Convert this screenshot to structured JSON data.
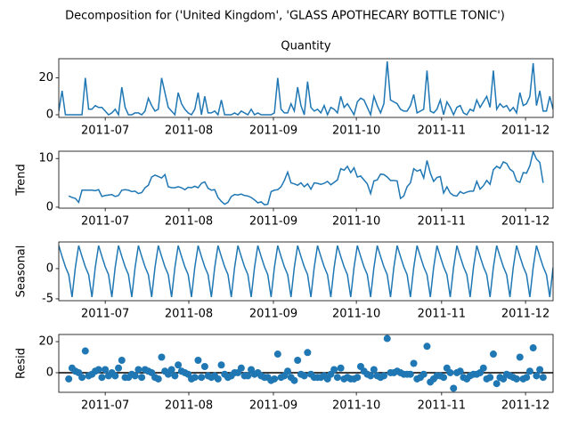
{
  "title": "Decomposition for ('United Kingdom', 'GLASS APOTHECARY BOTTLE TONIC')",
  "chart_data": [
    {
      "type": "line",
      "title": "Quantity",
      "color": "#1f77b4",
      "categories": [
        null,
        null,
        null,
        null,
        null,
        null,
        null,
        null,
        null,
        null,
        null,
        null,
        null,
        null,
        null,
        null,
        null,
        null,
        null,
        null,
        null,
        null,
        null,
        null,
        null,
        null,
        null,
        null,
        null,
        null,
        null,
        null,
        null,
        null,
        null,
        null,
        null,
        null,
        null,
        null,
        null,
        null,
        null,
        null,
        null,
        null,
        null,
        null,
        null,
        null,
        null,
        null,
        null,
        null,
        null,
        null,
        null,
        null,
        null,
        null,
        null,
        null,
        null,
        null,
        null,
        null,
        null,
        null,
        null,
        null,
        null,
        null,
        null,
        null,
        null,
        null,
        null,
        null,
        null,
        null,
        null,
        null,
        null,
        null,
        null,
        null,
        null,
        null,
        null,
        null,
        null,
        null,
        null,
        null,
        null,
        null,
        null,
        null,
        null,
        null,
        null,
        null,
        null,
        null,
        null,
        null,
        null,
        null,
        null,
        null,
        null,
        null,
        null,
        null,
        null,
        null,
        null,
        null,
        null,
        null,
        null,
        null,
        null,
        null,
        null,
        null,
        null,
        null,
        null,
        null,
        null,
        null,
        null,
        null,
        null,
        null,
        null,
        null,
        null,
        null,
        null,
        null,
        null,
        null,
        null,
        null,
        null,
        null,
        null,
        null
      ],
      "values": [
        2,
        13,
        0,
        0,
        0,
        0,
        0,
        0,
        20,
        3,
        3,
        5,
        4,
        4,
        2,
        0,
        1,
        3,
        0,
        15,
        4,
        0,
        0,
        1,
        1,
        0,
        2,
        9,
        5,
        2,
        3,
        20,
        12,
        4,
        2,
        0,
        12,
        6,
        3,
        1,
        0,
        3,
        12,
        0,
        10,
        1,
        1,
        2,
        0,
        8,
        0,
        0,
        0,
        1,
        0,
        2,
        1,
        0,
        3,
        0,
        1,
        0,
        0,
        0,
        0,
        1,
        20,
        3,
        1,
        1,
        6,
        2,
        15,
        5,
        0,
        18,
        4,
        2,
        3,
        1,
        5,
        0,
        4,
        3,
        1,
        10,
        4,
        6,
        3,
        0,
        7,
        9,
        8,
        4,
        0,
        10,
        5,
        1,
        6,
        29,
        8,
        7,
        6,
        3,
        2,
        2,
        5,
        11,
        1,
        2,
        3,
        24,
        2,
        1,
        3,
        8,
        0,
        7,
        4,
        0,
        4,
        5,
        1,
        0,
        3,
        2,
        8,
        4,
        7,
        10,
        4,
        24,
        3,
        6,
        4,
        5,
        2,
        4,
        1,
        12,
        5,
        6,
        10,
        28,
        5,
        13,
        2,
        2,
        10,
        3
      ],
      "xlim": [
        0,
        149
      ],
      "xticks": [
        {
          "value": 14.0,
          "label": "2011-07"
        },
        {
          "value": 39.2,
          "label": "2011-08"
        },
        {
          "value": 64.7,
          "label": "2011-09"
        },
        {
          "value": 89.7,
          "label": "2011-10"
        },
        {
          "value": 115.4,
          "label": "2011-11"
        },
        {
          "value": 140.7,
          "label": "2011-12"
        }
      ],
      "ylim": [
        -1.45,
        30.45
      ],
      "yticks": [
        0,
        20
      ]
    },
    {
      "type": "line",
      "ylabel": "Trend",
      "color": "#1f77b4",
      "categories": [
        null,
        null,
        null,
        null,
        null,
        null,
        null,
        null,
        null,
        null,
        null,
        null,
        null,
        null,
        null,
        null,
        null,
        null,
        null,
        null,
        null,
        null,
        null,
        null,
        null,
        null,
        null,
        null,
        null,
        null,
        null,
        null,
        null,
        null,
        null,
        null,
        null,
        null,
        null,
        null,
        null,
        null,
        null,
        null,
        null,
        null,
        null,
        null,
        null,
        null,
        null,
        null,
        null,
        null,
        null,
        null,
        null,
        null,
        null,
        null,
        null,
        null,
        null,
        null,
        null,
        null,
        null,
        null,
        null,
        null,
        null,
        null,
        null,
        null,
        null,
        null,
        null,
        null,
        null,
        null,
        null,
        null,
        null,
        null,
        null,
        null,
        null,
        null,
        null,
        null,
        null,
        null,
        null,
        null,
        null,
        null,
        null,
        null,
        null,
        null,
        null,
        null,
        null,
        null,
        null,
        null,
        null,
        null,
        null,
        null,
        null,
        null,
        null,
        null,
        null,
        null,
        null,
        null,
        null,
        null,
        null,
        null,
        null,
        null,
        null,
        null,
        null,
        null,
        null,
        null,
        null,
        null,
        null,
        null,
        null,
        null,
        null,
        null,
        null,
        null,
        null,
        null,
        null,
        null,
        null,
        null,
        null,
        null,
        null,
        null
      ],
      "values": [
        null,
        null,
        null,
        2.3,
        2.0,
        1.8,
        1.0,
        3.5,
        3.5,
        3.5,
        3.5,
        3.4,
        3.6,
        2.2,
        2.4,
        2.5,
        2.6,
        2.2,
        2.4,
        3.5,
        3.6,
        3.5,
        3.2,
        3.3,
        2.8,
        3.0,
        4.0,
        4.5,
        6.2,
        6.6,
        6.3,
        6.0,
        6.7,
        4.2,
        4.0,
        4.0,
        4.2,
        4.0,
        3.6,
        4.1,
        4.0,
        4.3,
        4.0,
        4.9,
        5.2,
        3.9,
        3.5,
        3.6,
        2.0,
        1.2,
        0.6,
        1.0,
        2.2,
        2.6,
        2.5,
        2.7,
        2.4,
        2.3,
        2.0,
        1.5,
        0.9,
        1.1,
        0.5,
        0.6,
        3.2,
        3.5,
        3.6,
        4.2,
        5.5,
        7.2,
        5.0,
        4.8,
        4.5,
        5.0,
        4.2,
        4.8,
        3.7,
        5.0,
        4.9,
        4.7,
        4.9,
        5.3,
        4.6,
        5.1,
        5.6,
        7.9,
        7.6,
        8.4,
        7.1,
        8.1,
        6.2,
        6.4,
        5.6,
        4.8,
        2.8,
        5.4,
        5.6,
        6.8,
        6.7,
        6.2,
        5.5,
        5.5,
        5.4,
        1.8,
        2.3,
        4.2,
        5.0,
        7.9,
        7.4,
        7.7,
        6.0,
        9.6,
        7.0,
        5.3,
        6.1,
        6.3,
        2.9,
        4.2,
        2.9,
        2.4,
        2.3,
        3.2,
        2.8,
        3.1,
        3.3,
        3.3,
        5.3,
        3.7,
        4.4,
        5.5,
        4.7,
        7.7,
        8.4,
        8.0,
        9.3,
        9.0,
        7.8,
        7.3,
        5.4,
        5.1,
        7.1,
        7.0,
        8.5,
        11.4,
        9.9,
        9.2,
        5.0,
        null,
        null,
        null
      ],
      "xlim": [
        0,
        149
      ],
      "xticks": [
        {
          "value": 14.0,
          "label": "2011-07"
        },
        {
          "value": 39.2,
          "label": "2011-08"
        },
        {
          "value": 64.7,
          "label": "2011-09"
        },
        {
          "value": 89.7,
          "label": "2011-10"
        },
        {
          "value": 115.4,
          "label": "2011-11"
        },
        {
          "value": 140.7,
          "label": "2011-12"
        }
      ],
      "ylim": [
        -0.2,
        11.5
      ],
      "yticks": [
        0,
        10
      ]
    },
    {
      "type": "line",
      "ylabel": "Seasonal",
      "color": "#1f77b4",
      "categories": [
        null,
        null,
        null,
        null,
        null,
        null,
        null,
        null,
        null,
        null,
        null,
        null,
        null,
        null,
        null,
        null,
        null,
        null,
        null,
        null,
        null,
        null,
        null,
        null,
        null,
        null,
        null,
        null,
        null,
        null,
        null,
        null,
        null,
        null,
        null,
        null,
        null,
        null,
        null,
        null,
        null,
        null,
        null,
        null,
        null,
        null,
        null,
        null,
        null,
        null,
        null,
        null,
        null,
        null,
        null,
        null,
        null,
        null,
        null,
        null,
        null,
        null,
        null,
        null,
        null,
        null,
        null,
        null,
        null,
        null,
        null,
        null,
        null,
        null,
        null,
        null,
        null,
        null,
        null,
        null,
        null,
        null,
        null,
        null,
        null,
        null,
        null,
        null,
        null,
        null,
        null,
        null,
        null,
        null,
        null,
        null,
        null,
        null,
        null,
        null,
        null,
        null,
        null,
        null,
        null,
        null,
        null,
        null,
        null,
        null,
        null,
        null,
        null,
        null,
        null,
        null,
        null,
        null,
        null,
        null,
        null,
        null,
        null,
        null,
        null,
        null,
        null,
        null,
        null,
        null,
        null,
        null,
        null,
        null,
        null,
        null,
        null,
        null,
        null,
        null,
        null,
        null,
        null,
        null,
        null,
        null,
        null,
        null,
        null,
        null
      ],
      "values": [
        3.8,
        2.0,
        0.3,
        -1.0,
        -4.7,
        0.2,
        3.8,
        2.0,
        0.3,
        -1.0,
        -4.7,
        0.2,
        3.8,
        2.0,
        0.3,
        -1.0,
        -4.7,
        0.2,
        3.8,
        2.0,
        0.3,
        -1.0,
        -4.7,
        0.2,
        3.8,
        2.0,
        0.3,
        -1.0,
        -4.7,
        0.2,
        3.8,
        2.0,
        0.3,
        -1.0,
        -4.7,
        0.2,
        3.8,
        2.0,
        0.3,
        -1.0,
        -4.7,
        0.2,
        3.8,
        2.0,
        0.3,
        -1.0,
        -4.7,
        0.2,
        3.8,
        2.0,
        0.3,
        -1.0,
        -4.7,
        0.2,
        3.8,
        2.0,
        0.3,
        -1.0,
        -4.7,
        0.2,
        3.8,
        2.0,
        0.3,
        -1.0,
        -4.7,
        0.2,
        3.8,
        2.0,
        0.3,
        -1.0,
        -4.7,
        0.2,
        3.8,
        2.0,
        0.3,
        -1.0,
        -4.7,
        0.2,
        3.8,
        2.0,
        0.3,
        -1.0,
        -4.7,
        0.2,
        3.8,
        2.0,
        0.3,
        -1.0,
        -4.7,
        0.2,
        3.8,
        2.0,
        0.3,
        -1.0,
        -4.7,
        0.2,
        3.8,
        2.0,
        0.3,
        -1.0,
        -4.7,
        0.2,
        3.8,
        2.0,
        0.3,
        -1.0,
        -4.7,
        0.2,
        3.8,
        2.0,
        0.3,
        -1.0,
        -4.7,
        0.2,
        3.8,
        2.0,
        0.3,
        -1.0,
        -4.7,
        0.2,
        3.8,
        2.0,
        0.3,
        -1.0,
        -4.7,
        0.2,
        3.8,
        2.0,
        0.3,
        -1.0,
        -4.7,
        0.2,
        3.8,
        2.0,
        0.3,
        -1.0,
        -4.7,
        0.2,
        3.8,
        2.0,
        0.3,
        -1.0,
        -4.7,
        0.2,
        3.8,
        2.0,
        0.3,
        -1.0,
        -4.7,
        0.2
      ],
      "xlim": [
        0,
        149
      ],
      "xticks": [
        {
          "value": 14.0,
          "label": "2011-07"
        },
        {
          "value": 39.2,
          "label": "2011-08"
        },
        {
          "value": 64.7,
          "label": "2011-09"
        },
        {
          "value": 89.7,
          "label": "2011-10"
        },
        {
          "value": 115.4,
          "label": "2011-11"
        },
        {
          "value": 140.7,
          "label": "2011-12"
        }
      ],
      "ylim": [
        -5.3,
        4.4
      ],
      "yticks": [
        -5,
        0
      ]
    },
    {
      "type": "scatter",
      "ylabel": "Resid",
      "color": "#1f77b4",
      "hline": 0,
      "categories": [
        null,
        null,
        null,
        null,
        null,
        null,
        null,
        null,
        null,
        null,
        null,
        null,
        null,
        null,
        null,
        null,
        null,
        null,
        null,
        null,
        null,
        null,
        null,
        null,
        null,
        null,
        null,
        null,
        null,
        null,
        null,
        null,
        null,
        null,
        null,
        null,
        null,
        null,
        null,
        null,
        null,
        null,
        null,
        null,
        null,
        null,
        null,
        null,
        null,
        null,
        null,
        null,
        null,
        null,
        null,
        null,
        null,
        null,
        null,
        null,
        null,
        null,
        null,
        null,
        null,
        null,
        null,
        null,
        null,
        null,
        null,
        null,
        null,
        null,
        null,
        null,
        null,
        null,
        null,
        null,
        null,
        null,
        null,
        null,
        null,
        null,
        null,
        null,
        null,
        null,
        null,
        null,
        null,
        null,
        null,
        null,
        null,
        null,
        null,
        null,
        null,
        null,
        null,
        null,
        null,
        null,
        null,
        null,
        null,
        null,
        null,
        null,
        null,
        null,
        null,
        null,
        null,
        null,
        null,
        null,
        null,
        null,
        null,
        null,
        null,
        null,
        null,
        null,
        null,
        null,
        null,
        null,
        null,
        null,
        null,
        null,
        null,
        null,
        null,
        null,
        null,
        null,
        null,
        null,
        null,
        null,
        null,
        null,
        null,
        null
      ],
      "values": [
        null,
        null,
        null,
        -4,
        3,
        1,
        0,
        -3,
        14,
        -2,
        -1,
        1,
        2,
        -3,
        2,
        -2,
        0,
        -2,
        3,
        8,
        -3,
        -3,
        -1,
        -2,
        2,
        -3,
        2,
        1,
        0,
        -3,
        -4,
        10,
        1,
        -1,
        2,
        -2,
        5,
        1,
        0,
        -1,
        -4,
        -3,
        8,
        -3,
        4,
        -2,
        -3,
        -2,
        -4,
        5,
        -1,
        -3,
        -2,
        0,
        0,
        3,
        -2,
        -2,
        2,
        -1,
        0,
        -2,
        -3,
        -3,
        -5,
        -4,
        12,
        -3,
        -2,
        1,
        -3,
        -5,
        8,
        -1,
        -2,
        13,
        -1,
        -3,
        -3,
        -3,
        -2,
        -4,
        -1,
        2,
        -3,
        3,
        -4,
        -3,
        -4,
        -4,
        -3,
        4,
        1,
        -1,
        -2,
        2,
        -2,
        -3,
        -2,
        22,
        0,
        0,
        1,
        0,
        -1,
        -1,
        -1,
        6,
        -4,
        -3,
        -1,
        17,
        -6,
        -4,
        -2,
        -2,
        -3,
        3,
        0,
        -10,
        0,
        1,
        -3,
        -4,
        -2,
        -1,
        -1,
        0,
        3,
        -4,
        -3,
        12,
        -7,
        -3,
        -4,
        -1,
        -2,
        -3,
        -4,
        10,
        -4,
        -3,
        1,
        16,
        -2,
        2,
        -3,
        null,
        null,
        null
      ],
      "xlim": [
        0,
        149
      ],
      "xticks": [
        {
          "value": 14.0,
          "label": "2011-07"
        },
        {
          "value": 39.2,
          "label": "2011-08"
        },
        {
          "value": 64.7,
          "label": "2011-09"
        },
        {
          "value": 89.7,
          "label": "2011-10"
        },
        {
          "value": 115.4,
          "label": "2011-11"
        },
        {
          "value": 140.7,
          "label": "2011-12"
        }
      ],
      "ylim": [
        -12.6,
        24.6
      ],
      "yticks": [
        0,
        20
      ]
    }
  ]
}
